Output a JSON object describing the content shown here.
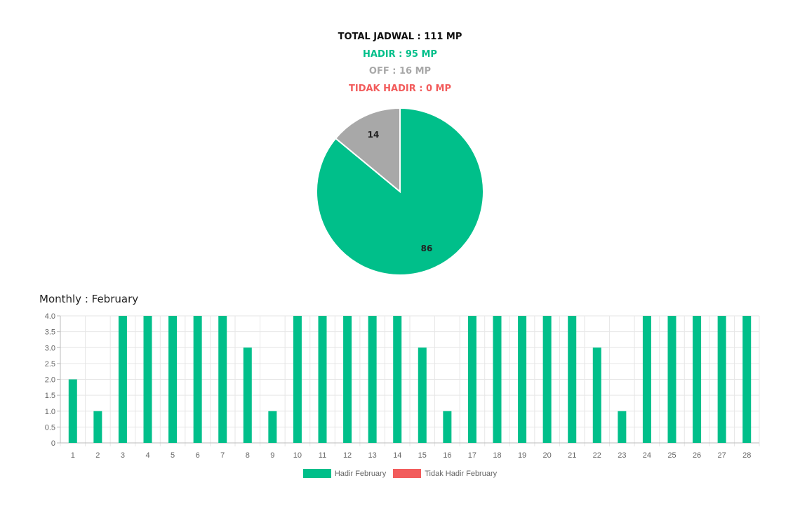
{
  "summary": {
    "total": "TOTAL JADWAL : 111 MP",
    "hadir": "HADIR : 95 MP",
    "off": "OFF : 16 MP",
    "tidak_hadir": "TIDAK HADIR : 0 MP"
  },
  "colors": {
    "hadir": "#00bf8a",
    "off": "#a8a8a8",
    "tidak_hadir": "#f25c5c"
  },
  "chart_data": [
    {
      "type": "pie",
      "labels": [
        "",
        ""
      ],
      "values": [
        86,
        14
      ],
      "value_labels": [
        "86",
        "14"
      ],
      "colors": [
        "#00bf8a",
        "#a8a8a8"
      ]
    },
    {
      "type": "bar",
      "title": "Monthly : February",
      "categories": [
        "1",
        "2",
        "3",
        "4",
        "5",
        "6",
        "7",
        "8",
        "9",
        "10",
        "11",
        "12",
        "13",
        "14",
        "15",
        "16",
        "17",
        "18",
        "19",
        "20",
        "21",
        "22",
        "23",
        "24",
        "25",
        "26",
        "27",
        "28"
      ],
      "series": [
        {
          "name": "Hadir February",
          "color": "#00bf8a",
          "values": [
            2,
            1,
            4,
            4,
            4,
            4,
            4,
            3,
            1,
            4,
            4,
            4,
            4,
            4,
            3,
            1,
            4,
            4,
            4,
            4,
            4,
            3,
            1,
            4,
            4,
            4,
            4,
            4
          ]
        },
        {
          "name": "Tidak Hadir February",
          "color": "#f25c5c",
          "values": [
            0,
            0,
            0,
            0,
            0,
            0,
            0,
            0,
            0,
            0,
            0,
            0,
            0,
            0,
            0,
            0,
            0,
            0,
            0,
            0,
            0,
            0,
            0,
            0,
            0,
            0,
            0,
            0
          ]
        }
      ],
      "y_ticks": [
        "0",
        "0.5",
        "1.0",
        "1.5",
        "2.0",
        "2.5",
        "3.0",
        "3.5",
        "4.0"
      ],
      "ylim": [
        0,
        4
      ],
      "grid": true,
      "legend": "bottom"
    }
  ]
}
